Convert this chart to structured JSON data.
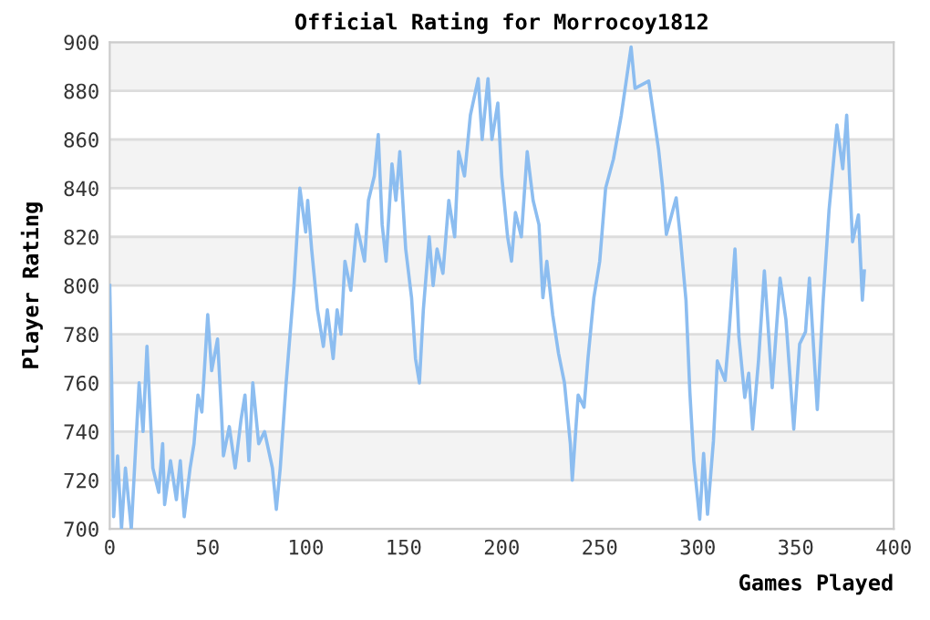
{
  "chart_data": {
    "type": "line",
    "title": "Official Rating for Morrocoy1812",
    "xlabel": "Games Played",
    "ylabel": "Player Rating",
    "xlim": [
      0,
      400
    ],
    "xticks": [
      0,
      50,
      100,
      150,
      200,
      250,
      300,
      350,
      400
    ],
    "ylim": [
      700,
      900
    ],
    "yticks": [
      700,
      720,
      740,
      760,
      780,
      800,
      820,
      840,
      860,
      880,
      900
    ],
    "grid": "y",
    "marker": "none",
    "line_style": "solid",
    "series": [
      {
        "color": "#8cbdf0",
        "x": [
          0,
          1,
          2,
          4,
          6,
          8,
          11,
          12,
          15,
          17,
          19,
          22,
          25,
          27,
          28,
          31,
          34,
          36,
          38,
          41,
          43,
          45,
          47,
          50,
          52,
          55,
          57,
          58,
          61,
          64,
          67,
          69,
          71,
          73,
          76,
          79,
          83,
          85,
          87,
          90,
          94,
          97,
          100,
          101,
          103,
          106,
          109,
          111,
          114,
          116,
          118,
          120,
          123,
          126,
          130,
          132,
          135,
          137,
          139,
          141,
          144,
          146,
          148,
          151,
          154,
          156,
          158,
          160,
          163,
          165,
          167,
          170,
          173,
          176,
          178,
          181,
          184,
          188,
          190,
          193,
          195,
          198,
          200,
          203,
          205,
          207,
          210,
          213,
          216,
          219,
          221,
          223,
          226,
          229,
          232,
          235,
          236,
          239,
          242,
          244,
          247,
          250,
          253,
          257,
          261,
          266,
          268,
          275,
          280,
          282,
          284,
          289,
          291,
          294,
          296,
          298,
          301,
          303,
          305,
          308,
          310,
          314,
          316,
          319,
          321,
          324,
          326,
          328,
          331,
          334,
          338,
          342,
          345,
          349,
          352,
          355,
          357,
          361,
          364,
          367,
          371,
          374,
          376,
          379,
          382,
          384,
          385
        ],
        "values": [
          800,
          760,
          705,
          730,
          700,
          725,
          700,
          715,
          760,
          740,
          775,
          725,
          715,
          735,
          710,
          728,
          712,
          728,
          705,
          725,
          735,
          755,
          748,
          788,
          765,
          778,
          748,
          730,
          742,
          725,
          745,
          755,
          728,
          760,
          735,
          740,
          725,
          708,
          725,
          760,
          800,
          840,
          822,
          835,
          815,
          790,
          775,
          790,
          770,
          790,
          780,
          810,
          798,
          825,
          810,
          835,
          845,
          862,
          825,
          810,
          850,
          835,
          855,
          815,
          795,
          770,
          760,
          790,
          820,
          800,
          815,
          805,
          835,
          820,
          855,
          845,
          870,
          885,
          860,
          885,
          860,
          875,
          845,
          820,
          810,
          830,
          820,
          855,
          835,
          825,
          795,
          810,
          788,
          772,
          760,
          735,
          720,
          755,
          750,
          770,
          795,
          810,
          840,
          852,
          870,
          898,
          881,
          884,
          856,
          841,
          821,
          836,
          821,
          794,
          756,
          728,
          704,
          731,
          706,
          736,
          769,
          761,
          781,
          815,
          779,
          754,
          764,
          741,
          769,
          806,
          758,
          803,
          786,
          741,
          776,
          781,
          803,
          749,
          794,
          831,
          866,
          848,
          870,
          818,
          829,
          794,
          806
        ]
      }
    ]
  }
}
